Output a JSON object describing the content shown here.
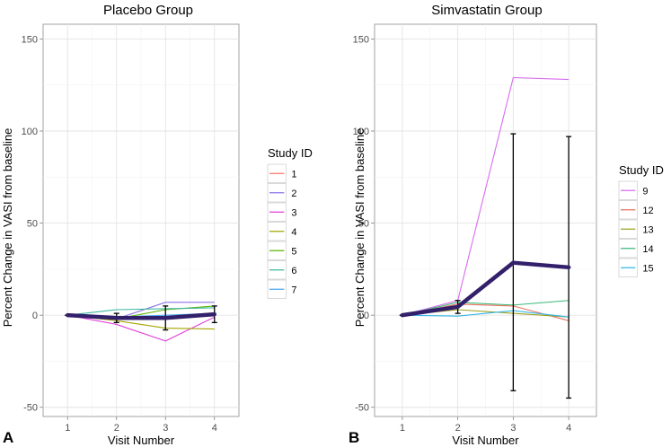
{
  "chart_data": [
    {
      "type": "line",
      "panel_label": "A",
      "title": "Placebo Group",
      "xlabel": "Visit Number",
      "ylabel": "Percent Change in VASI from baseline",
      "x": [
        1,
        2,
        3,
        4
      ],
      "x_ticks": [
        "1",
        "2",
        "3",
        "4"
      ],
      "ylim": [
        -55,
        158
      ],
      "y_ticks": [
        -50,
        0,
        50,
        100,
        150
      ],
      "grid": true,
      "legend_title": "Study ID",
      "legend_position": "right",
      "series": [
        {
          "name": "1",
          "color": "#f8766d",
          "values": [
            0,
            -1,
            -1,
            1
          ]
        },
        {
          "name": "2",
          "color": "#8b73e8",
          "values": [
            0,
            -2,
            7,
            7
          ]
        },
        {
          "name": "3",
          "color": "#e040d8",
          "values": [
            0,
            -5,
            -14,
            -1
          ]
        },
        {
          "name": "4",
          "color": "#a3a500",
          "values": [
            0,
            -3,
            -7,
            -7.5
          ]
        },
        {
          "name": "5",
          "color": "#5bb300",
          "values": [
            0,
            -2,
            3,
            5
          ]
        },
        {
          "name": "6",
          "color": "#3cb8a2",
          "values": [
            0,
            3,
            3.5,
            4
          ]
        },
        {
          "name": "7",
          "color": "#4aa6f0",
          "values": [
            0,
            -1,
            0,
            1
          ]
        }
      ],
      "mean": {
        "color": "#33206b",
        "values": [
          0,
          -1.5,
          -1.5,
          0.5
        ],
        "err_low": [
          0,
          -4,
          -8,
          -4
        ],
        "err_high": [
          0,
          1,
          5,
          5
        ]
      }
    },
    {
      "type": "line",
      "panel_label": "B",
      "title": "Simvastatin Group",
      "xlabel": "Visit Number",
      "ylabel": "Percent Change in VASI from baseline",
      "x": [
        1,
        2,
        3,
        4
      ],
      "x_ticks": [
        "1",
        "2",
        "3",
        "4"
      ],
      "ylim": [
        -55,
        158
      ],
      "y_ticks": [
        -50,
        0,
        50,
        100,
        150
      ],
      "grid": true,
      "legend_title": "Study ID",
      "legend_position": "right",
      "series": [
        {
          "name": "9",
          "color": "#d86cf0",
          "values": [
            0,
            8,
            129,
            128
          ]
        },
        {
          "name": "12",
          "color": "#e7735e",
          "values": [
            0,
            6,
            5,
            -3
          ]
        },
        {
          "name": "13",
          "color": "#9da21f",
          "values": [
            0,
            3,
            1,
            -1
          ]
        },
        {
          "name": "14",
          "color": "#3cb878",
          "values": [
            0,
            7,
            5.5,
            8
          ]
        },
        {
          "name": "15",
          "color": "#36b6e8",
          "values": [
            0,
            -0.5,
            2.5,
            -1
          ]
        }
      ],
      "mean": {
        "color": "#33206b",
        "values": [
          0,
          4.5,
          28.5,
          26
        ],
        "err_low": [
          0,
          1,
          -41,
          -45
        ],
        "err_high": [
          0,
          8,
          98.5,
          97
        ]
      }
    }
  ]
}
